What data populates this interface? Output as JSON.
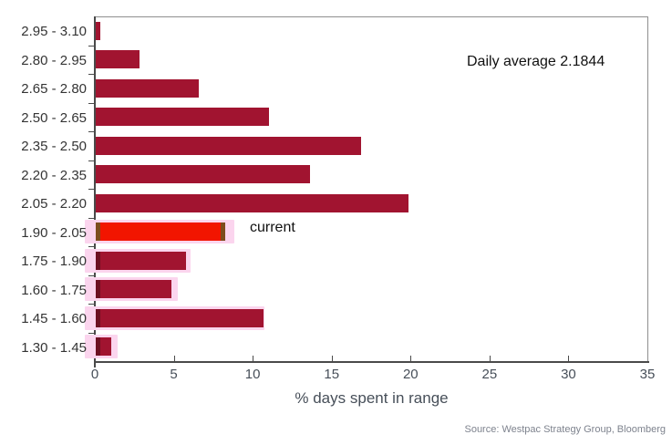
{
  "chart_data": {
    "type": "bar",
    "orientation": "horizontal",
    "xlabel": "% days spent in range",
    "ylabel": "",
    "xlim": [
      0,
      35
    ],
    "xticks": [
      0,
      5,
      10,
      15,
      20,
      25,
      30,
      35
    ],
    "grid": false,
    "legend": "none",
    "categories": [
      "2.95 - 3.10",
      "2.80 - 2.95",
      "2.65 - 2.80",
      "2.50 - 2.65",
      "2.35 - 2.50",
      "2.20 - 2.35",
      "2.05 - 2.20",
      "1.90 - 2.05",
      "1.75 - 1.90",
      "1.60 - 1.75",
      "1.45 - 1.60",
      "1.30 - 1.45"
    ],
    "rows": [
      {
        "label": "2.95 - 3.10",
        "value": 0.3,
        "halo": null,
        "current": false
      },
      {
        "label": "2.80 - 2.95",
        "value": 2.8,
        "halo": null,
        "current": false
      },
      {
        "label": "2.65 - 2.80",
        "value": 6.5,
        "halo": null,
        "current": false
      },
      {
        "label": "2.50 - 2.65",
        "value": 11.0,
        "halo": null,
        "current": false
      },
      {
        "label": "2.35 - 2.50",
        "value": 16.8,
        "halo": null,
        "current": false
      },
      {
        "label": "2.20 - 2.35",
        "value": 13.6,
        "halo": null,
        "current": false
      },
      {
        "label": "2.05 - 2.20",
        "value": 19.8,
        "halo": null,
        "current": false
      },
      {
        "label": "1.90 - 2.05",
        "value": 8.2,
        "halo": 8.8,
        "current": true
      },
      {
        "label": "1.75 - 1.90",
        "value": 5.7,
        "halo": 6.0,
        "current": false
      },
      {
        "label": "1.60 - 1.75",
        "value": 4.8,
        "halo": 5.2,
        "current": false
      },
      {
        "label": "1.45 - 1.60",
        "value": 10.6,
        "halo": 10.7,
        "current": false
      },
      {
        "label": "1.30 - 1.45",
        "value": 1.0,
        "halo": 1.4,
        "current": false
      }
    ],
    "annotations": {
      "daily_average": "Daily average 2.1844",
      "current_marker": "current"
    },
    "colors": {
      "bar": "#a11430",
      "bar_cap": "#6d1022",
      "current_bar": "#f21500",
      "current_cap": "#7d4d1e",
      "halo": "#fbd5ee"
    }
  },
  "source_line": "Source: Westpac Strategy Group, Bloomberg"
}
